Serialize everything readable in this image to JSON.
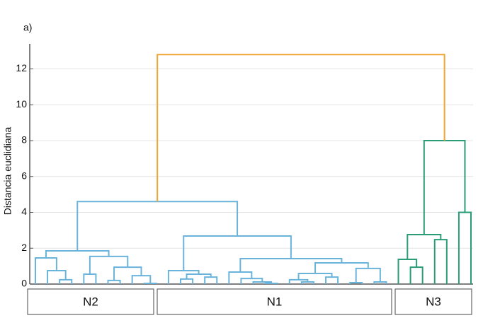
{
  "chart_data": {
    "type": "dendrogram",
    "title": "a)",
    "y_label": "Distancia euclidiana",
    "ylim": [
      0,
      13.4
    ],
    "yticks": [
      0,
      2,
      4,
      6,
      8,
      10,
      12
    ],
    "grid": true,
    "groups": [
      "N2",
      "N1",
      "N3"
    ],
    "tree": {
      "height": 12.8,
      "color": "#f0a530",
      "children": [
        {
          "height": 4.6,
          "color": "#6ab4dc",
          "children": [
            {
              "height": 1.85,
              "children": [
                {
                  "height": 1.46,
                  "children": [
                    0,
                    {
                      "height": 0.75,
                      "children": [
                        0,
                        {
                          "height": 0.24,
                          "children": [
                            0,
                            0
                          ]
                        }
                      ]
                    }
                  ]
                },
                {
                  "height": 1.54,
                  "children": [
                    {
                      "height": 0.55,
                      "children": [
                        0,
                        0
                      ]
                    },
                    {
                      "height": 0.94,
                      "children": [
                        {
                          "height": 0.2,
                          "children": [
                            0,
                            0
                          ]
                        },
                        {
                          "height": 0.47,
                          "children": [
                            0,
                            {
                              "height": 0.04,
                              "children": [
                                0,
                                0
                              ]
                            }
                          ]
                        }
                      ]
                    }
                  ]
                }
              ]
            },
            {
              "height": 2.68,
              "children": [
                {
                  "height": 0.75,
                  "children": [
                    0,
                    {
                      "height": 0.55,
                      "children": [
                        {
                          "height": 0.28,
                          "children": [
                            0,
                            0
                          ]
                        },
                        {
                          "height": 0.39,
                          "children": [
                            0,
                            0
                          ]
                        }
                      ]
                    }
                  ]
                },
                {
                  "height": 1.42,
                  "children": [
                    {
                      "height": 0.67,
                      "children": [
                        0,
                        {
                          "height": 0.31,
                          "children": [
                            0,
                            {
                              "height": 0.12,
                              "children": [
                                0,
                                {
                                  "height": 0.04,
                                  "children": [
                                    0,
                                    0
                                  ]
                                }
                              ]
                            }
                          ]
                        }
                      ]
                    },
                    {
                      "height": 1.18,
                      "children": [
                        {
                          "height": 0.59,
                          "children": [
                            {
                              "height": 0.24,
                              "children": [
                                0,
                                {
                                  "height": 0.12,
                                  "children": [
                                    0,
                                    0
                                  ]
                                }
                              ]
                            },
                            {
                              "height": 0.39,
                              "children": [
                                0,
                                0
                              ]
                            }
                          ]
                        },
                        {
                          "height": 0.87,
                          "children": [
                            {
                              "height": 0.08,
                              "children": [
                                0,
                                0
                              ]
                            },
                            {
                              "height": 0.12,
                              "children": [
                                0,
                                0
                              ]
                            }
                          ]
                        }
                      ]
                    }
                  ]
                }
              ]
            }
          ]
        },
        {
          "height": 8.0,
          "color": "#2a9d78",
          "children": [
            {
              "height": 2.76,
              "children": [
                {
                  "height": 1.38,
                  "children": [
                    0,
                    {
                      "height": 0.94,
                      "children": [
                        0,
                        0
                      ]
                    }
                  ]
                },
                {
                  "height": 2.48,
                  "children": [
                    0,
                    0
                  ]
                }
              ]
            },
            {
              "height": 4.0,
              "children": [
                0,
                0
              ]
            }
          ]
        }
      ]
    }
  }
}
